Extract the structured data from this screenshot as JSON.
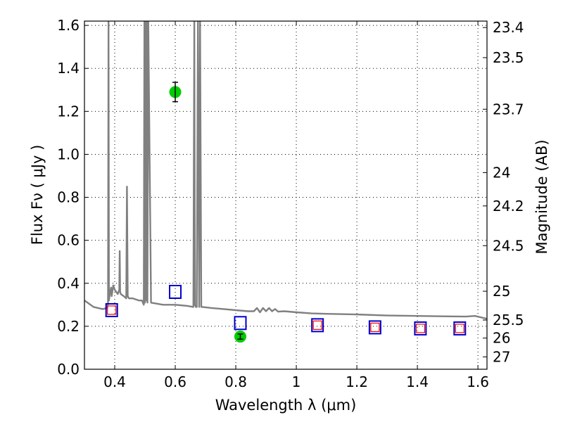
{
  "chart_data": {
    "type": "scatter",
    "title": "",
    "xlabel": "Wavelength  λ (μm)",
    "ylabel": "Flux  Fν  ( μJy )",
    "ylabel_right": "Magnitude (AB)",
    "xlim": [
      0.3,
      1.63
    ],
    "ylim": [
      0.0,
      1.62
    ],
    "grid": true,
    "xticks": [
      0.4,
      0.6,
      0.8,
      1.0,
      1.2,
      1.4,
      1.6
    ],
    "xtick_labels": [
      "0.4",
      "0.6",
      "0.8",
      "1",
      "1.2",
      "1.4",
      "1.6"
    ],
    "yticks": [
      0.0,
      0.2,
      0.4,
      0.6,
      0.8,
      1.0,
      1.2,
      1.4,
      1.6
    ],
    "ytick_labels": [
      "0.0",
      "0.2",
      "0.4",
      "0.6",
      "0.8",
      "1.0",
      "1.2",
      "1.4",
      "1.6"
    ],
    "right_ticks": [
      {
        "label": "23.4",
        "flux": 1.59
      },
      {
        "label": "23.5",
        "flux": 1.45
      },
      {
        "label": "23.7",
        "flux": 1.21
      },
      {
        "label": "24",
        "flux": 0.915
      },
      {
        "label": "24.2",
        "flux": 0.76
      },
      {
        "label": "24.5",
        "flux": 0.575
      },
      {
        "label": "25",
        "flux": 0.363
      },
      {
        "label": "25.5",
        "flux": 0.229
      },
      {
        "label": "26",
        "flux": 0.145
      },
      {
        "label": "27",
        "flux": 0.0575
      }
    ],
    "series": [
      {
        "name": "model spectrum",
        "kind": "line",
        "color": "#808080",
        "x": [
          0.3,
          0.33,
          0.36,
          0.375,
          0.378,
          0.3795,
          0.381,
          0.384,
          0.388,
          0.39,
          0.395,
          0.4,
          0.405,
          0.41,
          0.415,
          0.4165,
          0.418,
          0.42,
          0.43,
          0.438,
          0.4405,
          0.443,
          0.447,
          0.46,
          0.48,
          0.49,
          0.496,
          0.498,
          0.5,
          0.502,
          0.504,
          0.506,
          0.508,
          0.511,
          0.52,
          0.56,
          0.6,
          0.64,
          0.66,
          0.663,
          0.665,
          0.668,
          0.671,
          0.675,
          0.679,
          0.682,
          0.686,
          0.69,
          0.72,
          0.76,
          0.8,
          0.84,
          0.86,
          0.87,
          0.88,
          0.89,
          0.9,
          0.91,
          0.92,
          0.93,
          0.94,
          0.96,
          1.0,
          1.05,
          1.1,
          1.2,
          1.3,
          1.4,
          1.5,
          1.56,
          1.59,
          1.63
        ],
        "y": [
          0.32,
          0.29,
          0.28,
          0.285,
          0.31,
          1.62,
          0.32,
          0.35,
          0.38,
          0.34,
          0.39,
          0.37,
          0.36,
          0.35,
          0.37,
          0.55,
          0.36,
          0.35,
          0.34,
          0.33,
          0.85,
          0.34,
          0.33,
          0.33,
          0.32,
          0.32,
          0.3,
          1.62,
          0.31,
          1.62,
          0.32,
          1.62,
          0.31,
          1.62,
          0.31,
          0.3,
          0.3,
          0.295,
          0.29,
          1.62,
          0.3,
          0.29,
          0.29,
          1.62,
          0.29,
          1.62,
          0.29,
          0.29,
          0.285,
          0.28,
          0.275,
          0.27,
          0.27,
          0.285,
          0.265,
          0.285,
          0.27,
          0.285,
          0.27,
          0.28,
          0.268,
          0.27,
          0.265,
          0.26,
          0.258,
          0.255,
          0.25,
          0.248,
          0.246,
          0.245,
          0.248,
          0.235
        ]
      },
      {
        "name": "blue squares",
        "kind": "marker",
        "marker": "open-square",
        "color": "#0000cc",
        "x": [
          0.39,
          0.6,
          0.815,
          1.07,
          1.26,
          1.41,
          1.54
        ],
        "y": [
          0.275,
          0.36,
          0.215,
          0.205,
          0.195,
          0.19,
          0.19
        ]
      },
      {
        "name": "red squares",
        "kind": "marker",
        "marker": "small-open-square",
        "color": "#ff0000",
        "x": [
          0.39,
          1.07,
          1.26,
          1.41,
          1.54
        ],
        "y": [
          0.275,
          0.205,
          0.195,
          0.19,
          0.19
        ]
      },
      {
        "name": "green points",
        "kind": "marker",
        "marker": "filled-circle",
        "color": "#00cc00",
        "x": [
          0.6,
          0.815
        ],
        "y": [
          1.29,
          0.152
        ],
        "yerr": [
          0.045,
          0.012
        ]
      }
    ]
  }
}
